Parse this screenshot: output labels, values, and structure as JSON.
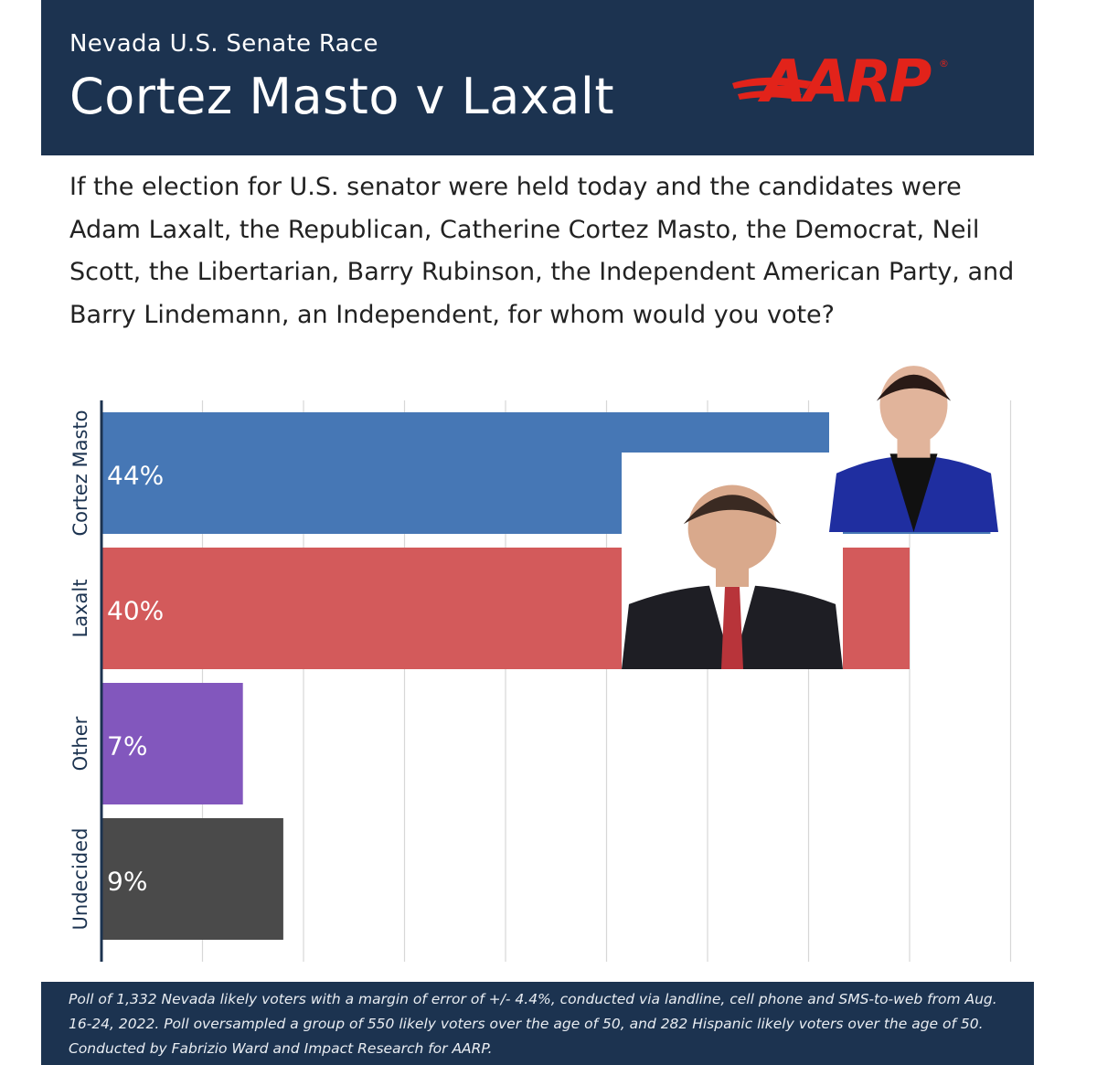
{
  "header": {
    "subtitle": "Nevada U.S. Senate Race",
    "title": "Cortez Masto v Laxalt",
    "logo_text": "AARP",
    "logo_color": "#e2231a",
    "background_color": "#1c3350"
  },
  "question": "If the election for U.S. senator were held today and the candidates were Adam Laxalt, the Republican, Catherine Cortez Masto, the Democrat, Neil Scott, the Libertarian, Barry Rubinson, the Independent American Party, and Barry Lindemann, an Independent, for whom would you vote?",
  "chart_data": {
    "type": "bar",
    "orientation": "horizontal",
    "categories": [
      "Cortez Masto",
      "Laxalt",
      "Other",
      "Undecided"
    ],
    "values": [
      44,
      40,
      7,
      9
    ],
    "value_labels": [
      "44%",
      "40%",
      "7%",
      "9%"
    ],
    "colors": [
      "#4677b5",
      "#d35a5b",
      "#8257bd",
      "#4a4a4a"
    ],
    "xlim": [
      0,
      45
    ],
    "grid": true,
    "photos": [
      "Cortez Masto",
      "Laxalt"
    ]
  },
  "footer": {
    "text": "Poll of 1,332 Nevada likely voters with a margin of error of +/- 4.4%, conducted via landline, cell phone and SMS-to-web from Aug. 16-24, 2022. Poll oversampled a group of 550 likely voters over the age of 50, and 282 Hispanic likely voters over the age of 50. Conducted by Fabrizio Ward and Impact Research for AARP."
  }
}
